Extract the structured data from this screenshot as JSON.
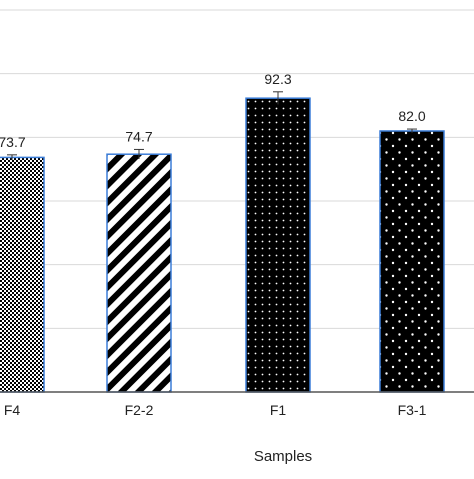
{
  "chart_data": {
    "type": "bar",
    "title": "",
    "xlabel": "Samples",
    "ylabel": "",
    "ylim": [
      0,
      120
    ],
    "grid": true,
    "categories": [
      "F4",
      "F2-2",
      "F1",
      "F3-1"
    ],
    "values": [
      73.7,
      74.7,
      92.3,
      82.0
    ],
    "data_labels": [
      "73.7",
      "74.7",
      "92.3",
      "82.0"
    ],
    "errors": [
      0.8,
      1.5,
      2.0,
      0.6
    ],
    "patterns": [
      "checker",
      "diagonal-stripes",
      "small-dots",
      "large-dots"
    ],
    "colors": {
      "bar_outline": "#3b7dd8",
      "pattern_dark": "#000000",
      "pattern_light": "#ffffff",
      "grid": "#d9d9d9",
      "axis": "#555555"
    }
  }
}
